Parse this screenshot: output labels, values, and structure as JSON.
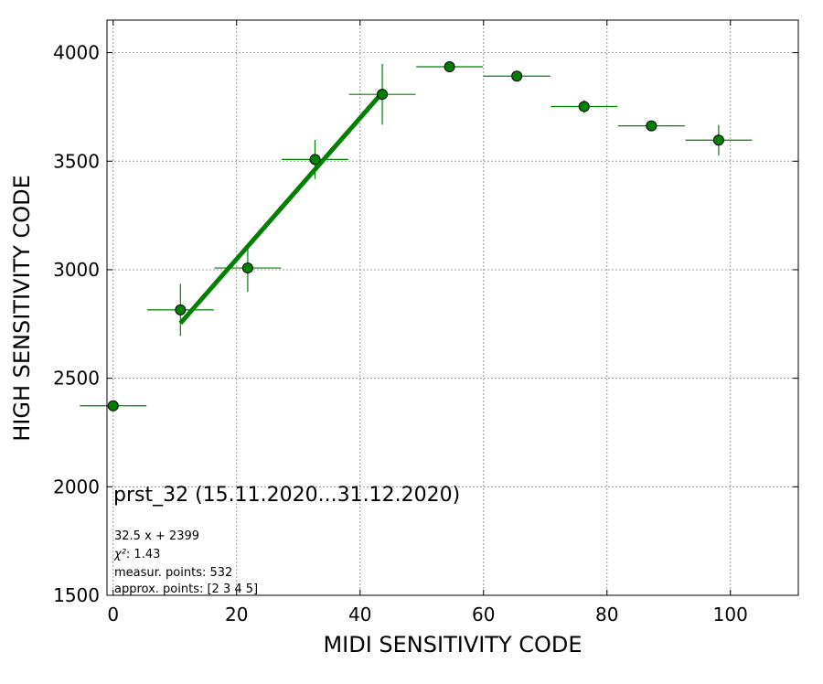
{
  "chart_data": {
    "type": "scatter",
    "title": "",
    "xlabel": "MIDI SENSITIVITY CODE",
    "ylabel": "HIGH SENSITIVITY CODE",
    "xlim": [
      -1,
      111
    ],
    "ylim": [
      1500,
      4150
    ],
    "xticks": [
      0,
      20,
      40,
      60,
      80,
      100
    ],
    "yticks": [
      1500,
      2000,
      2500,
      3000,
      3500,
      4000
    ],
    "grid": true,
    "series": [
      {
        "marker_color": "#008000",
        "points": [
          {
            "x": 0,
            "y": 2373,
            "xerr": 5.4,
            "yerr": 0
          },
          {
            "x": 10.9,
            "y": 2815,
            "xerr": 5.4,
            "yerr": 120
          },
          {
            "x": 21.8,
            "y": 3008,
            "xerr": 5.4,
            "yerr": 110
          },
          {
            "x": 32.7,
            "y": 3508,
            "xerr": 5.4,
            "yerr": 90
          },
          {
            "x": 43.6,
            "y": 3808,
            "xerr": 5.4,
            "yerr": 140
          },
          {
            "x": 54.5,
            "y": 3935,
            "xerr": 5.4,
            "yerr": 20
          },
          {
            "x": 65.4,
            "y": 3892,
            "xerr": 5.4,
            "yerr": 20
          },
          {
            "x": 76.3,
            "y": 3752,
            "xerr": 5.4,
            "yerr": 30
          },
          {
            "x": 87.2,
            "y": 3663,
            "xerr": 5.4,
            "yerr": 20
          },
          {
            "x": 98.1,
            "y": 3597,
            "xerr": 5.4,
            "yerr": 70
          }
        ]
      }
    ],
    "fit_line": {
      "slope": 32.5,
      "intercept": 2399,
      "x_range": [
        10.9,
        43.6
      ],
      "color": "#008000"
    },
    "annotations": {
      "main": "prst_32 (15.11.2020...31.12.2020)",
      "equation": "32.5 x + 2399",
      "chi2_label": "χ²",
      "chi2_value": ": 1.43",
      "measur_points": "measur. points: 532",
      "approx_points": "approx. points: [2 3 4 5]"
    }
  }
}
